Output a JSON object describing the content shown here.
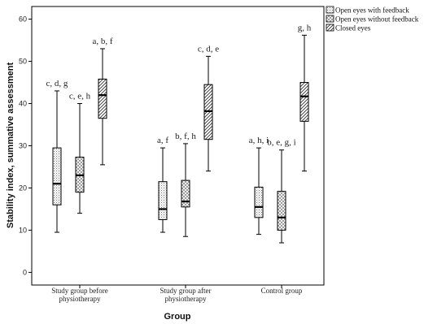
{
  "chart_data": {
    "type": "boxplot",
    "xlabel": "Group",
    "ylabel": "Stability index, summative assessment",
    "ylim": [
      -3,
      63
    ],
    "yticks": [
      0,
      10,
      20,
      30,
      40,
      50,
      60
    ],
    "categories": [
      [
        "Study group before",
        "physiotherapy"
      ],
      [
        "Study group after",
        "physiotherapy"
      ],
      [
        "Control group"
      ]
    ],
    "series": [
      {
        "name": "Open eyes with feedback",
        "pattern": "dots",
        "boxes": [
          {
            "min": 9.5,
            "q1": 16,
            "median": 21,
            "q3": 29.5,
            "max": 43,
            "label": "c, d, g"
          },
          {
            "min": 9.5,
            "q1": 12.5,
            "median": 15,
            "q3": 21.5,
            "max": 29.5,
            "label": "a, f"
          },
          {
            "min": 9,
            "q1": 13,
            "median": 15.5,
            "q3": 20.2,
            "max": 29.5,
            "label": "a, h, i"
          }
        ]
      },
      {
        "name": "Open eyes without feedback",
        "pattern": "crosshatch",
        "boxes": [
          {
            "min": 14,
            "q1": 19,
            "median": 23,
            "q3": 27.3,
            "max": 40,
            "label": "c, e, h"
          },
          {
            "min": 8.5,
            "q1": 15.5,
            "median": 16.8,
            "q3": 21.8,
            "max": 30.5,
            "label": "b, f, h"
          },
          {
            "min": 7,
            "q1": 10,
            "median": 13,
            "q3": 19.2,
            "max": 29,
            "label": "b, e, g, i"
          }
        ]
      },
      {
        "name": "Closed eyes",
        "pattern": "diagonal",
        "boxes": [
          {
            "min": 25.5,
            "q1": 36.5,
            "median": 42,
            "q3": 45.8,
            "max": 53,
            "label": "a, b, f"
          },
          {
            "min": 24,
            "q1": 31.5,
            "median": 38.2,
            "q3": 44.5,
            "max": 51.2,
            "label": "c, d, e"
          },
          {
            "min": 24,
            "q1": 35.8,
            "median": 41.7,
            "q3": 45,
            "max": 56.2,
            "label": "g, h"
          }
        ]
      }
    ],
    "legend_position": "top-right"
  }
}
